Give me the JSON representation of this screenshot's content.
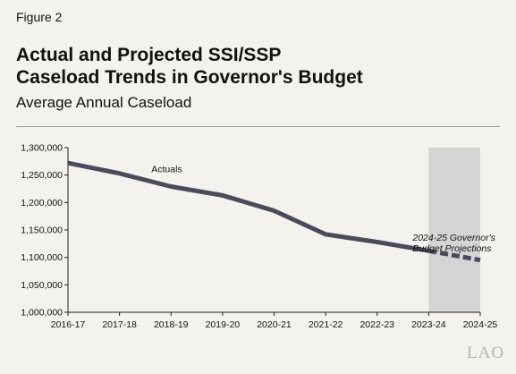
{
  "figure_label": "Figure 2",
  "title_lines": [
    "Actual and Projected SSI/SSP",
    "Caseload Trends in Governor's Budget"
  ],
  "subtitle": "Average Annual Caseload",
  "logo_text": "LAO",
  "chart_data": {
    "type": "line",
    "categories": [
      "2016-17",
      "2017-18",
      "2018-19",
      "2019-20",
      "2020-21",
      "2021-22",
      "2022-23",
      "2023-24",
      "2024-25"
    ],
    "series": [
      {
        "name": "Actuals",
        "values": [
          1272000,
          1253000,
          1229000,
          1213000,
          1185000,
          1142000,
          1128000,
          1112000,
          null
        ]
      },
      {
        "name": "2024-25 Governor's Budget Projections",
        "values": [
          null,
          null,
          null,
          null,
          null,
          null,
          null,
          1112000,
          1095000
        ]
      }
    ],
    "ylim": [
      1000000,
      1300000
    ],
    "yticks": [
      "1,000,000",
      "1,050,000",
      "1,100,000",
      "1,150,000",
      "1,200,000",
      "1,250,000",
      "1,300,000"
    ],
    "ytick_values": [
      1000000,
      1050000,
      1100000,
      1150000,
      1200000,
      1250000,
      1300000
    ],
    "shaded_range": [
      "2023-24",
      "2024-25"
    ],
    "annotations": [
      {
        "text": "Actuals",
        "category": "2018-19",
        "value": 1262000
      },
      {
        "text_lines": [
          "2024-25 Governor's",
          "Budget Projections"
        ],
        "category": "2023-24",
        "value": 1140000
      }
    ],
    "colors": {
      "line": "#4a4a5c",
      "shade": "#d4d4d4",
      "axis": "#222222"
    }
  }
}
